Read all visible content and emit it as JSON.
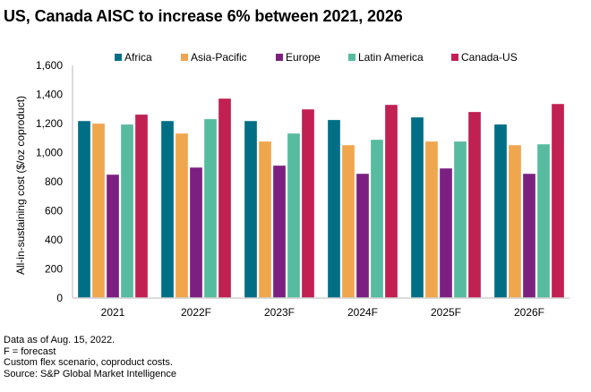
{
  "chart_data": {
    "type": "bar",
    "title": "US, Canada AISC to increase 6% between 2021, 2026",
    "xlabel": "",
    "ylabel": "All-in-sustaining cost ($/oz coproduct)",
    "ylim": [
      0,
      1600
    ],
    "yticks": [
      0,
      200,
      400,
      600,
      800,
      1000,
      1200,
      1400,
      1600
    ],
    "ytick_labels": [
      "0",
      "200",
      "400",
      "600",
      "800",
      "1,000",
      "1,200",
      "1,400",
      "1,600"
    ],
    "grid": false,
    "legend_position": "top",
    "categories": [
      "2021",
      "2022F",
      "2023F",
      "2024F",
      "2025F",
      "2026F"
    ],
    "series": [
      {
        "name": "Africa",
        "color": "#006f86",
        "values": [
          1218,
          1218,
          1218,
          1225,
          1243,
          1194
        ]
      },
      {
        "name": "Asia-Pacific",
        "color": "#f0a64d",
        "values": [
          1200,
          1132,
          1077,
          1052,
          1077,
          1052
        ]
      },
      {
        "name": "Europe",
        "color": "#7b2080",
        "values": [
          849,
          898,
          911,
          855,
          892,
          855
        ]
      },
      {
        "name": "Latin America",
        "color": "#57bba0",
        "values": [
          1194,
          1231,
          1132,
          1089,
          1077,
          1058
        ]
      },
      {
        "name": "Canada-US",
        "color": "#c02052",
        "values": [
          1262,
          1372,
          1298,
          1329,
          1280,
          1335
        ]
      }
    ]
  },
  "footer": {
    "lines": [
      "Data as of Aug. 15, 2022.",
      "F = forecast",
      "Custom flex scenario, coproduct costs.",
      "Source: S&P Global Market Intelligence"
    ]
  }
}
